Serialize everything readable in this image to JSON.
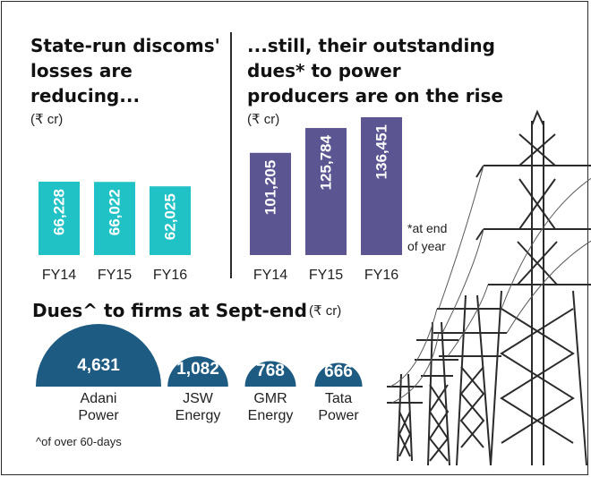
{
  "panel_left": {
    "title": "State-run discoms'\nlosses are\nreducing...",
    "unit": "(₹ cr)"
  },
  "panel_right": {
    "title": "...still, their outstanding\ndues* to power\nproducers are on the rise",
    "unit": "(₹ cr)",
    "footnote_1": "*at end",
    "footnote_2": "of year"
  },
  "panel_bottom": {
    "title": "Dues^ to firms at Sept-end",
    "unit": "(₹ cr)",
    "footnote": "^of over 60-days"
  },
  "colors": {
    "teal": "#21c2c6",
    "purple": "#5b5592",
    "navy": "#1e5b82",
    "frame": "#2b2b2b"
  },
  "chart_data": [
    {
      "type": "bar",
      "title": "State-run discoms' losses are reducing...",
      "categories": [
        "FY14",
        "FY15",
        "FY16"
      ],
      "values": [
        66228,
        66022,
        62025
      ],
      "value_labels": [
        "66,228",
        "66,022",
        "62,025"
      ],
      "ylabel": "(₹ cr)",
      "color": "#21c2c6"
    },
    {
      "type": "bar",
      "title": "...still, their outstanding dues* to power producers are on the rise",
      "categories": [
        "FY14",
        "FY15",
        "FY16"
      ],
      "values": [
        101205,
        125784,
        136451
      ],
      "value_labels": [
        "101,205",
        "125,784",
        "136,451"
      ],
      "ylabel": "(₹ cr)",
      "color": "#5b5592"
    },
    {
      "type": "bar",
      "title": "Dues^ to firms at Sept-end",
      "categories": [
        [
          "Adani",
          "Power"
        ],
        [
          "JSW",
          "Energy"
        ],
        [
          "GMR",
          "Energy"
        ],
        [
          "Tata",
          "Power"
        ]
      ],
      "values": [
        4631,
        1082,
        768,
        666
      ],
      "value_labels": [
        "4,631",
        "1,082",
        "768",
        "666"
      ],
      "ylabel": "(₹ cr)",
      "color": "#1e5b82"
    }
  ]
}
